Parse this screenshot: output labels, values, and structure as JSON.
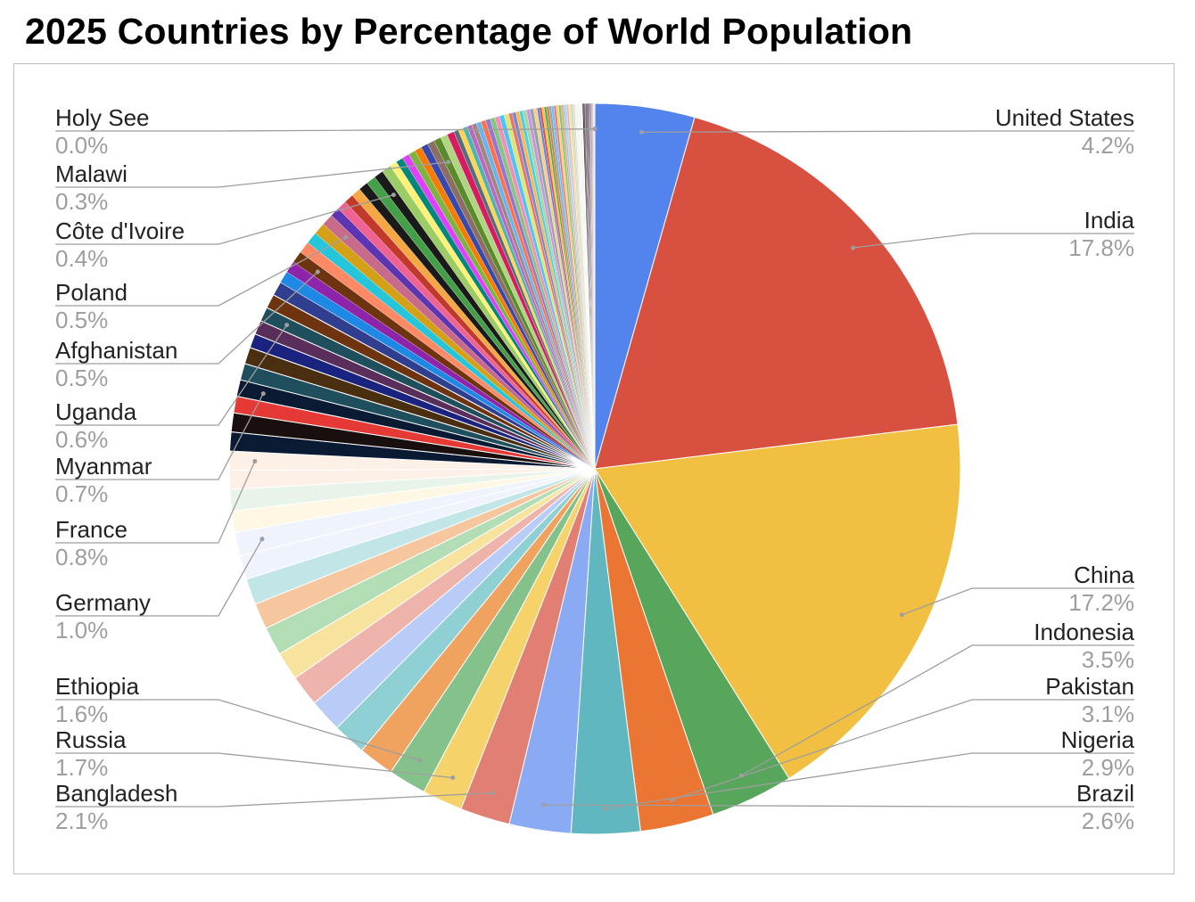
{
  "title": "2025 Countries by Percentage of World Population",
  "chart_data": {
    "type": "pie",
    "title": "2025 Countries by Percentage of World Population",
    "start_angle_deg": 0,
    "direction": "clockwise",
    "labeled_slices": [
      {
        "name": "United States",
        "value": 4.2,
        "label": "4.2%",
        "color": "#5383EC"
      },
      {
        "name": "India",
        "value": 17.8,
        "label": "17.8%",
        "color": "#D85040"
      },
      {
        "name": "China",
        "value": 17.2,
        "label": "17.2%",
        "color": "#F1BF42"
      },
      {
        "name": "Indonesia",
        "value": 3.5,
        "label": "3.5%",
        "color": "#58A55C"
      },
      {
        "name": "Pakistan",
        "value": 3.1,
        "label": "3.1%",
        "color": "#EB7533"
      },
      {
        "name": "Nigeria",
        "value": 2.9,
        "label": "2.9%",
        "color": "#61B7C0"
      },
      {
        "name": "Brazil",
        "value": 2.6,
        "label": "2.6%",
        "color": "#8AABF3"
      },
      {
        "name": "Bangladesh",
        "value": 2.1,
        "label": "2.1%",
        "color": "#E17F72"
      },
      {
        "name": "Russia",
        "value": 1.7,
        "label": "1.7%",
        "color": "#F5D36A"
      },
      {
        "name": "Ethiopia",
        "value": 1.6,
        "label": "1.6%",
        "color": "#85C28B"
      },
      {
        "name": "Germany",
        "value": 1.0,
        "label": "1.0%",
        "color": "#EFF3FB"
      },
      {
        "name": "France",
        "value": 0.8,
        "label": "0.8%",
        "color": "#FDF0E6"
      },
      {
        "name": "Myanmar",
        "value": 0.7,
        "label": "0.7%",
        "color": "#0A1A33"
      },
      {
        "name": "Uganda",
        "value": 0.6,
        "label": "0.6%",
        "color": "#1F4E5C"
      },
      {
        "name": "Afghanistan",
        "value": 0.5,
        "label": "0.5%",
        "color": "#6E3410"
      },
      {
        "name": "Poland",
        "value": 0.5,
        "label": "0.5%",
        "color": "#C86A8A"
      },
      {
        "name": "Côte d'Ivoire",
        "value": 0.4,
        "label": "0.4%",
        "color": "#1A1A1A"
      },
      {
        "name": "Malawi",
        "value": 0.3,
        "label": "0.3%",
        "color": "#5A8A2A"
      },
      {
        "name": "Holy See",
        "value": 0.0,
        "label": "0.0%",
        "color": "#8A8A8A"
      }
    ],
    "slices_in_order": [
      {
        "name": "United States",
        "value": 4.2
      },
      {
        "name": "India",
        "value": 17.8
      },
      {
        "name": "China",
        "value": 17.2
      },
      {
        "name": "Indonesia",
        "value": 3.5
      },
      {
        "name": "Pakistan",
        "value": 3.1
      },
      {
        "name": "Nigeria",
        "value": 2.9
      },
      {
        "name": "Brazil",
        "value": 2.6
      },
      {
        "name": "Bangladesh",
        "value": 2.1
      },
      {
        "name": "Russia",
        "value": 1.7
      },
      {
        "name": "Ethiopia",
        "value": 1.6
      },
      {
        "name": "",
        "value": 1.5
      },
      {
        "name": "",
        "value": 1.4
      },
      {
        "name": "",
        "value": 1.4
      },
      {
        "name": "",
        "value": 1.3
      },
      {
        "name": "",
        "value": 1.2
      },
      {
        "name": "",
        "value": 1.2
      },
      {
        "name": "",
        "value": 1.1
      },
      {
        "name": "",
        "value": 1.1
      },
      {
        "name": "",
        "value": 1.0
      },
      {
        "name": "Germany",
        "value": 1.0
      },
      {
        "name": "",
        "value": 0.9
      },
      {
        "name": "",
        "value": 0.9
      },
      {
        "name": "",
        "value": 0.8
      },
      {
        "name": "France",
        "value": 0.8
      },
      {
        "name": "",
        "value": 0.8
      },
      {
        "name": "",
        "value": 0.8
      },
      {
        "name": "",
        "value": 0.7
      },
      {
        "name": "Myanmar",
        "value": 0.7
      },
      {
        "name": "",
        "value": 0.7
      },
      {
        "name": "",
        "value": 0.7
      },
      {
        "name": "",
        "value": 0.6
      },
      {
        "name": "",
        "value": 0.6
      },
      {
        "name": "Uganda",
        "value": 0.6
      },
      {
        "name": "",
        "value": 0.6
      },
      {
        "name": "",
        "value": 0.6
      },
      {
        "name": "",
        "value": 0.5
      },
      {
        "name": "",
        "value": 0.5
      },
      {
        "name": "Afghanistan",
        "value": 0.5
      },
      {
        "name": "",
        "value": 0.5
      },
      {
        "name": "",
        "value": 0.5
      },
      {
        "name": "",
        "value": 0.5
      },
      {
        "name": "Poland",
        "value": 0.5
      },
      {
        "name": "",
        "value": 0.4
      },
      {
        "name": "",
        "value": 0.4
      },
      {
        "name": "",
        "value": 0.4
      },
      {
        "name": "",
        "value": 0.4
      },
      {
        "name": "",
        "value": 0.4
      },
      {
        "name": "",
        "value": 0.4
      },
      {
        "name": "Côte d'Ivoire",
        "value": 0.4
      },
      {
        "name": "",
        "value": 0.4
      },
      {
        "name": "",
        "value": 0.3
      },
      {
        "name": "",
        "value": 0.3
      },
      {
        "name": "",
        "value": 0.3
      },
      {
        "name": "",
        "value": 0.3
      },
      {
        "name": "",
        "value": 0.3
      },
      {
        "name": "",
        "value": 0.3
      },
      {
        "name": "",
        "value": 0.3
      },
      {
        "name": "Malawi",
        "value": 0.3
      },
      {
        "name": "",
        "value": 0.3
      },
      {
        "name": "",
        "value": 0.3
      },
      {
        "name": "",
        "value": 0.2
      },
      {
        "name": "",
        "value": 0.2
      },
      {
        "name": "",
        "value": 0.2
      },
      {
        "name": "",
        "value": 0.2
      },
      {
        "name": "",
        "value": 0.2
      },
      {
        "name": "",
        "value": 0.2
      },
      {
        "name": "",
        "value": 0.2
      },
      {
        "name": "",
        "value": 0.2
      },
      {
        "name": "",
        "value": 0.2
      },
      {
        "name": "",
        "value": 0.2
      },
      {
        "name": "",
        "value": 0.2
      },
      {
        "name": "",
        "value": 0.2
      },
      {
        "name": "",
        "value": 0.15
      },
      {
        "name": "",
        "value": 0.15
      },
      {
        "name": "",
        "value": 0.15
      },
      {
        "name": "",
        "value": 0.15
      },
      {
        "name": "",
        "value": 0.15
      },
      {
        "name": "",
        "value": 0.15
      },
      {
        "name": "",
        "value": 0.15
      },
      {
        "name": "",
        "value": 0.15
      },
      {
        "name": "",
        "value": 0.1
      },
      {
        "name": "",
        "value": 0.1
      },
      {
        "name": "",
        "value": 0.1
      },
      {
        "name": "",
        "value": 0.1
      },
      {
        "name": "",
        "value": 0.1
      },
      {
        "name": "",
        "value": 0.1
      },
      {
        "name": "",
        "value": 0.1
      },
      {
        "name": "",
        "value": 0.1
      },
      {
        "name": "",
        "value": 0.1
      },
      {
        "name": "",
        "value": 0.1
      },
      {
        "name": "",
        "value": 0.08
      },
      {
        "name": "",
        "value": 0.08
      },
      {
        "name": "",
        "value": 0.08
      },
      {
        "name": "",
        "value": 0.08
      },
      {
        "name": "",
        "value": 0.08
      },
      {
        "name": "",
        "value": 0.06
      },
      {
        "name": "",
        "value": 0.06
      },
      {
        "name": "",
        "value": 0.06
      },
      {
        "name": "",
        "value": 0.06
      },
      {
        "name": "",
        "value": 0.06
      },
      {
        "name": "",
        "value": 0.05
      },
      {
        "name": "",
        "value": 0.05
      },
      {
        "name": "",
        "value": 0.05
      },
      {
        "name": "",
        "value": 0.05
      },
      {
        "name": "",
        "value": 0.05
      },
      {
        "name": "",
        "value": 0.04
      },
      {
        "name": "",
        "value": 0.04
      },
      {
        "name": "",
        "value": 0.04
      },
      {
        "name": "",
        "value": 0.04
      },
      {
        "name": "",
        "value": 0.04
      },
      {
        "name": "",
        "value": 0.03
      },
      {
        "name": "",
        "value": 0.03
      },
      {
        "name": "",
        "value": 0.03
      },
      {
        "name": "",
        "value": 0.03
      },
      {
        "name": "",
        "value": 0.02
      },
      {
        "name": "",
        "value": 0.02
      },
      {
        "name": "",
        "value": 0.02
      },
      {
        "name": "",
        "value": 0.02
      },
      {
        "name": "",
        "value": 0.01
      },
      {
        "name": "",
        "value": 0.01
      },
      {
        "name": "",
        "value": 0.01
      },
      {
        "name": "",
        "value": 0.01
      },
      {
        "name": "",
        "value": 0.01
      },
      {
        "name": "",
        "value": 0.005
      },
      {
        "name": "",
        "value": 0.005
      },
      {
        "name": "",
        "value": 0.005
      },
      {
        "name": "Holy See",
        "value": 0.0
      }
    ],
    "palette": [
      "#5383EC",
      "#D85040",
      "#F1BF42",
      "#58A55C",
      "#EB7533",
      "#61B7C0",
      "#8AABF3",
      "#E17F72",
      "#F5D36A",
      "#85C28B",
      "#F0A25F",
      "#8ED0D4",
      "#B8CCF7",
      "#EEB3AB",
      "#F8E39E",
      "#B2DDB5",
      "#F6C79F",
      "#C2E6E8",
      "#EFF3FB",
      "#FCEDEA",
      "#FEF7E3",
      "#E8F4E9",
      "#FDF0E6",
      "#F3FAFB",
      "#0A1A33",
      "#1A0F0F",
      "#E53935",
      "#0F1E4A",
      "#1F4E5C",
      "#4A2E10",
      "#1A237E",
      "#5A2E5A",
      "#E05A8A",
      "#6E3410",
      "#2F3E8F",
      "#1E88E5",
      "#8E24AA",
      "#2E7D32",
      "#FF8A65",
      "#26C6DA",
      "#D4A017",
      "#C86A8A",
      "#5E35B1",
      "#F06292",
      "#C0392B",
      "#F4A742",
      "#1A1A1A",
      "#43A047",
      "#1565C0",
      "#9CCC65",
      "#FFF176",
      "#00897B",
      "#E040FB",
      "#7CB342",
      "#F57C00",
      "#3949AB",
      "#8D6E63",
      "#80DEEA",
      "#AED581",
      "#D81B60",
      "#546E7A",
      "#FFD54F",
      "#4DB6AC",
      "#BA68C8",
      "#A1887F",
      "#64B5F6",
      "#FF7043",
      "#9575CD",
      "#81C784",
      "#F48FB1",
      "#4FC3F7",
      "#DCE775",
      "#E57373",
      "#7986CB",
      "#FFB74D",
      "#4DD0E1",
      "#A5D6A7",
      "#CE93D8",
      "#90A4AE",
      "#FFCC80"
    ]
  },
  "labels": {
    "left": [
      {
        "name": "Holy See",
        "pct": "0.0%"
      },
      {
        "name": "Malawi",
        "pct": "0.3%"
      },
      {
        "name": "Côte d'Ivoire",
        "pct": "0.4%"
      },
      {
        "name": "Poland",
        "pct": "0.5%"
      },
      {
        "name": "Afghanistan",
        "pct": "0.5%"
      },
      {
        "name": "Uganda",
        "pct": "0.6%"
      },
      {
        "name": "Myanmar",
        "pct": "0.7%"
      },
      {
        "name": "France",
        "pct": "0.8%"
      },
      {
        "name": "Germany",
        "pct": "1.0%"
      },
      {
        "name": "Ethiopia",
        "pct": "1.6%"
      },
      {
        "name": "Russia",
        "pct": "1.7%"
      },
      {
        "name": "Bangladesh",
        "pct": "2.1%"
      }
    ],
    "right": [
      {
        "name": "United States",
        "pct": "4.2%"
      },
      {
        "name": "India",
        "pct": "17.8%"
      },
      {
        "name": "China",
        "pct": "17.2%"
      },
      {
        "name": "Indonesia",
        "pct": "3.5%"
      },
      {
        "name": "Pakistan",
        "pct": "3.1%"
      },
      {
        "name": "Nigeria",
        "pct": "2.9%"
      },
      {
        "name": "Brazil",
        "pct": "2.6%"
      }
    ]
  }
}
